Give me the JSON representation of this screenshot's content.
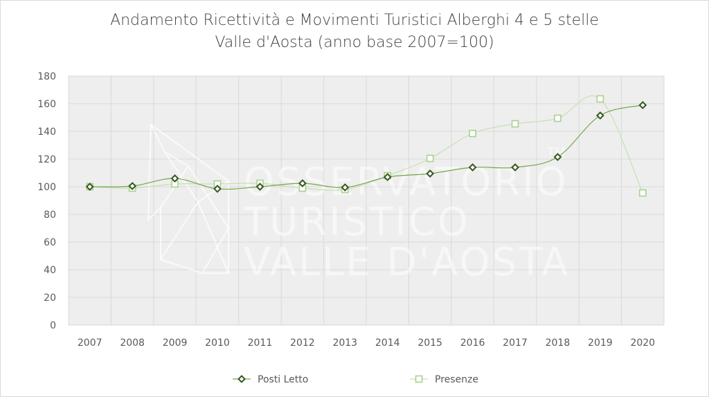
{
  "chart_data": {
    "type": "line",
    "title_lines": [
      "Andamento Ricettività e Movimenti Turistici Alberghi 4 e 5 stelle",
      "Valle d'Aosta (anno base 2007=100)"
    ],
    "categories": [
      "2007",
      "2008",
      "2009",
      "2010",
      "2011",
      "2012",
      "2013",
      "2014",
      "2015",
      "2016",
      "2017",
      "2018",
      "2019",
      "2020"
    ],
    "series": [
      {
        "name": "Posti Letto",
        "marker": "diamond",
        "color": "#70a74a",
        "marker_stroke": "#375623",
        "values": [
          100,
          100.5,
          106,
          98.5,
          100,
          102.5,
          99.5,
          107,
          109.5,
          114,
          114,
          121.5,
          151.5,
          159
        ]
      },
      {
        "name": "Presenze",
        "marker": "square",
        "color": "#c5e0b4",
        "marker_stroke": "#a9d08e",
        "values": [
          100,
          99,
          102,
          102,
          102.5,
          99,
          98,
          108,
          120.5,
          138.5,
          145.5,
          149.5,
          163.5,
          95.5
        ]
      }
    ],
    "ylim": [
      0,
      180
    ],
    "yticks": [
      0,
      20,
      40,
      60,
      80,
      100,
      120,
      140,
      160,
      180
    ],
    "grid": true,
    "legend_position": "bottom",
    "plot_background": "#eeeeee",
    "watermark": {
      "lines": [
        "OSSERVATORIO",
        "TURISTICO",
        "VALLE D'AOSTA"
      ],
      "mark": "TM"
    }
  }
}
